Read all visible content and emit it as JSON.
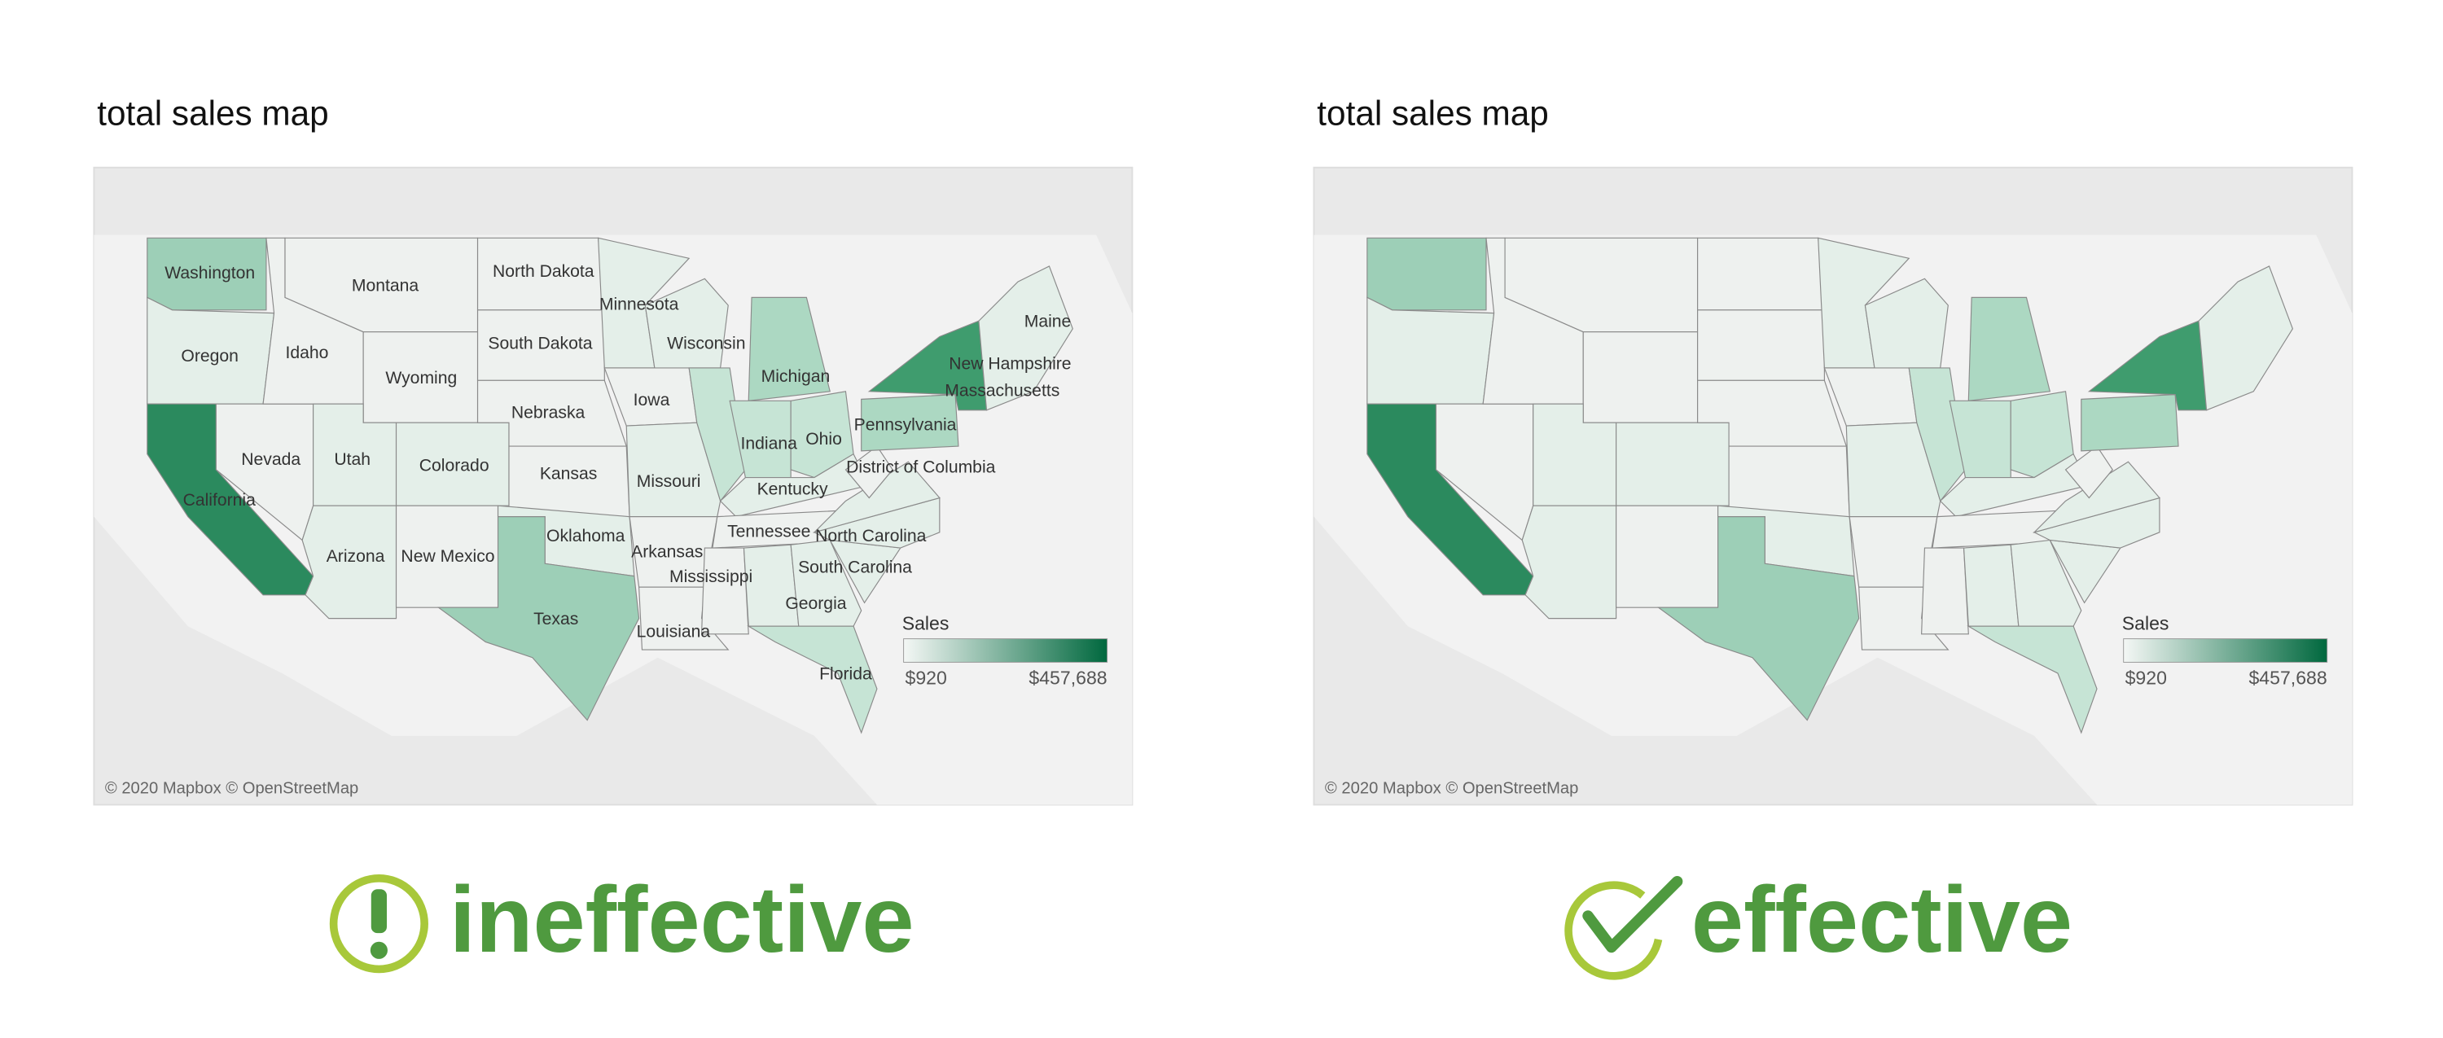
{
  "panels": [
    {
      "title": "total sales map",
      "state_labels": [
        "Washington",
        "Montana",
        "North Dakota",
        "Minnesota",
        "Maine",
        "Oregon",
        "Idaho",
        "South Dakota",
        "Wisconsin",
        "Michigan",
        "New Hampshire",
        "Wyoming",
        "Iowa",
        "Massachusetts",
        "Nebraska",
        "Pennsylvania",
        "Nevada",
        "Utah",
        "Colorado",
        "Kansas",
        "Indiana",
        "Ohio",
        "District of Columbia",
        "Missouri",
        "California",
        "Kentucky",
        "Oklahoma",
        "Arizona",
        "New Mexico",
        "Tennessee",
        "North Carolina",
        "Arkansas",
        "Mississippi",
        "South Carolina",
        "Georgia",
        "Texas",
        "Louisiana",
        "Florida"
      ],
      "legend": {
        "title": "Sales",
        "min": "$920",
        "max": "$457,688"
      },
      "attribution": "© 2020 Mapbox © OpenStreetMap",
      "verdict": "ineffective"
    },
    {
      "title": "total sales map",
      "legend": {
        "title": "Sales",
        "min": "$920",
        "max": "$457,688"
      },
      "attribution": "© 2020 Mapbox © OpenStreetMap",
      "verdict": "effective"
    }
  ]
}
